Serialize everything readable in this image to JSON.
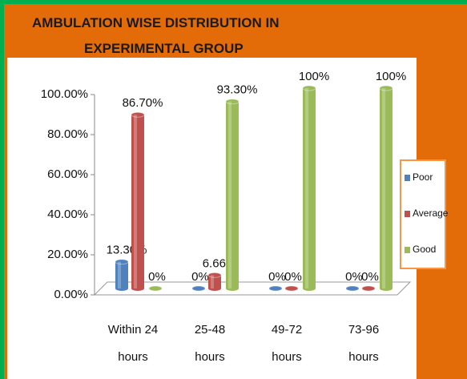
{
  "chart_data": {
    "type": "bar3d",
    "title": "AMBULATION WISE DISTRIBUTION IN EXPERIMENTAL GROUP",
    "categories": [
      "Within 24 hours",
      "25-48 hours",
      "49-72 hours",
      "73-96 hours"
    ],
    "series": [
      {
        "name": "Poor",
        "color": "#4f81bd",
        "values": [
          13.3,
          0,
          0,
          0
        ],
        "value_labels": [
          "13.30%",
          "0%",
          "0%",
          "0%"
        ]
      },
      {
        "name": "Average",
        "color": "#c0504d",
        "values": [
          86.7,
          6.66,
          0,
          0
        ],
        "value_labels": [
          "86.70%",
          "6.66%",
          "0%",
          "0%"
        ]
      },
      {
        "name": "Good",
        "color": "#9bbb59",
        "values": [
          0,
          93.3,
          100,
          100
        ],
        "value_labels": [
          "0%",
          "93.30%",
          "100%",
          "100%"
        ]
      }
    ],
    "ylim": [
      0,
      100
    ],
    "yticks": [
      {
        "value": 0,
        "label": "0.00%"
      },
      {
        "value": 20,
        "label": "20.00%"
      },
      {
        "value": 40,
        "label": "40.00%"
      },
      {
        "value": 60,
        "label": "60.00%"
      },
      {
        "value": 80,
        "label": "80.00%"
      },
      {
        "value": 100,
        "label": "100.00%"
      }
    ],
    "legend": "right"
  }
}
